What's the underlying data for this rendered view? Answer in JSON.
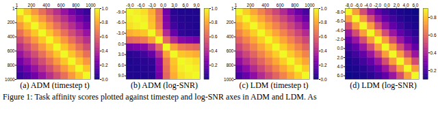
{
  "chart_data": [
    {
      "type": "heatmap",
      "title": "(a) ADM (timestep t)",
      "xlim": [
        1,
        1000
      ],
      "xticks": [
        1,
        200,
        400,
        600,
        800,
        1000
      ],
      "ylim": [
        1000,
        1
      ],
      "yticks": [
        1,
        200,
        400,
        600,
        800,
        1000
      ],
      "cells": [
        [
          1,
          0.88,
          0.76,
          0.64,
          0.52,
          0.42,
          0.32,
          0.22,
          0.14,
          0.08
        ],
        [
          0.88,
          1,
          0.88,
          0.76,
          0.64,
          0.52,
          0.42,
          0.32,
          0.22,
          0.14
        ],
        [
          0.76,
          0.88,
          1,
          0.88,
          0.76,
          0.64,
          0.52,
          0.42,
          0.32,
          0.22
        ],
        [
          0.64,
          0.76,
          0.88,
          1,
          0.88,
          0.76,
          0.64,
          0.52,
          0.42,
          0.32
        ],
        [
          0.52,
          0.64,
          0.76,
          0.88,
          1,
          0.88,
          0.76,
          0.64,
          0.52,
          0.42
        ],
        [
          0.42,
          0.52,
          0.64,
          0.76,
          0.88,
          1,
          0.88,
          0.76,
          0.64,
          0.52
        ],
        [
          0.32,
          0.42,
          0.52,
          0.64,
          0.76,
          0.88,
          1,
          0.88,
          0.76,
          0.64
        ],
        [
          0.22,
          0.32,
          0.42,
          0.52,
          0.64,
          0.76,
          0.88,
          1,
          0.88,
          0.76
        ],
        [
          0.14,
          0.22,
          0.32,
          0.42,
          0.52,
          0.64,
          0.76,
          0.88,
          1,
          0.88
        ],
        [
          0.08,
          0.14,
          0.22,
          0.32,
          0.42,
          0.52,
          0.64,
          0.76,
          0.88,
          1
        ]
      ],
      "colorbar": {
        "lim": [
          0,
          1
        ],
        "ticks": [
          {
            "value": 0,
            "label": "0.0"
          },
          {
            "value": 0.2,
            "label": "0.2"
          },
          {
            "value": 0.4,
            "label": "0.4"
          },
          {
            "value": 0.6,
            "label": "0.6"
          },
          {
            "value": 0.8,
            "label": "0.8"
          },
          {
            "value": 1,
            "label": "1.0"
          }
        ]
      }
    },
    {
      "type": "heatmap",
      "title": "(b) ADM (log-SNR)",
      "xlim": [
        -10,
        10
      ],
      "xticks": [
        {
          "value": -9,
          "label": "-9.0"
        },
        {
          "value": -6,
          "label": "-6.0"
        },
        {
          "value": -3,
          "label": "-3.0"
        },
        {
          "value": 0,
          "label": "0.0"
        },
        {
          "value": 3,
          "label": "3.0"
        },
        {
          "value": 6,
          "label": "6.0"
        },
        {
          "value": 9,
          "label": "9.0"
        }
      ],
      "ylim": [
        10,
        -10
      ],
      "yticks": [
        {
          "value": -9,
          "label": "-9.0"
        },
        {
          "value": -6,
          "label": "-6.0"
        },
        {
          "value": -3,
          "label": "-3.0"
        },
        {
          "value": 0,
          "label": "0.0"
        },
        {
          "value": 3,
          "label": "3.0"
        },
        {
          "value": 6,
          "label": "6.0"
        },
        {
          "value": 9,
          "label": "9.0"
        }
      ],
      "cells": [
        [
          1,
          0.97,
          0.94,
          0.82,
          0.61,
          0.22,
          0.05,
          0.03,
          0.03,
          0.03
        ],
        [
          0.97,
          1,
          0.97,
          0.85,
          0.64,
          0.25,
          0.07,
          0.04,
          0.03,
          0.03
        ],
        [
          0.94,
          0.97,
          1,
          0.88,
          0.67,
          0.28,
          0.1,
          0.05,
          0.04,
          0.03
        ],
        [
          0.82,
          0.85,
          0.88,
          1,
          0.79,
          0.4,
          0.19,
          0.07,
          0.05,
          0.04
        ],
        [
          0.61,
          0.64,
          0.67,
          0.79,
          1,
          0.61,
          0.4,
          0.28,
          0.25,
          0.22
        ],
        [
          0.22,
          0.25,
          0.28,
          0.4,
          0.61,
          1,
          0.79,
          0.67,
          0.64,
          0.61
        ],
        [
          0.05,
          0.07,
          0.1,
          0.19,
          0.4,
          0.79,
          1,
          0.88,
          0.85,
          0.82
        ],
        [
          0.03,
          0.04,
          0.05,
          0.07,
          0.28,
          0.67,
          0.88,
          1,
          0.97,
          0.94
        ],
        [
          0.03,
          0.03,
          0.04,
          0.05,
          0.25,
          0.64,
          0.85,
          0.97,
          1,
          0.97
        ],
        [
          0.03,
          0.03,
          0.03,
          0.04,
          0.22,
          0.61,
          0.82,
          0.94,
          0.97,
          1
        ]
      ],
      "colorbar": {
        "lim": [
          0,
          1
        ],
        "ticks": [
          {
            "value": 0.2,
            "label": "0.2"
          },
          {
            "value": 0.4,
            "label": "0.4"
          },
          {
            "value": 0.6,
            "label": "0.6"
          },
          {
            "value": 0.8,
            "label": "0.8"
          },
          {
            "value": 1,
            "label": "1.0"
          }
        ]
      }
    },
    {
      "type": "heatmap",
      "title": "(c) LDM (timestep t)",
      "xlim": [
        1,
        1000
      ],
      "xticks": [
        1,
        200,
        400,
        600,
        800,
        1000
      ],
      "ylim": [
        1000,
        1
      ],
      "yticks": [
        1,
        200,
        400,
        600,
        800,
        1000
      ],
      "cells": [
        [
          1,
          0.9,
          0.8,
          0.7,
          0.6,
          0.5,
          0.4,
          0.3,
          0.2,
          0.12
        ],
        [
          0.9,
          1,
          0.9,
          0.8,
          0.7,
          0.6,
          0.5,
          0.4,
          0.3,
          0.2
        ],
        [
          0.8,
          0.9,
          1,
          0.9,
          0.8,
          0.7,
          0.6,
          0.5,
          0.4,
          0.3
        ],
        [
          0.7,
          0.8,
          0.9,
          1,
          0.9,
          0.8,
          0.7,
          0.6,
          0.5,
          0.4
        ],
        [
          0.6,
          0.7,
          0.8,
          0.9,
          1,
          0.9,
          0.8,
          0.7,
          0.6,
          0.5
        ],
        [
          0.5,
          0.6,
          0.7,
          0.8,
          0.9,
          1,
          0.9,
          0.8,
          0.7,
          0.6
        ],
        [
          0.4,
          0.5,
          0.6,
          0.7,
          0.8,
          0.9,
          1,
          0.9,
          0.8,
          0.7
        ],
        [
          0.3,
          0.4,
          0.5,
          0.6,
          0.7,
          0.8,
          0.9,
          1,
          0.9,
          0.8
        ],
        [
          0.2,
          0.3,
          0.4,
          0.5,
          0.6,
          0.7,
          0.8,
          0.9,
          1,
          0.9
        ],
        [
          0.12,
          0.2,
          0.3,
          0.4,
          0.5,
          0.6,
          0.7,
          0.8,
          0.9,
          1
        ]
      ],
      "colorbar": {
        "lim": [
          0,
          1
        ],
        "ticks": [
          {
            "value": 0,
            "label": "0.0"
          },
          {
            "value": 0.2,
            "label": "0.2"
          },
          {
            "value": 0.4,
            "label": "0.4"
          },
          {
            "value": 0.6,
            "label": "0.6"
          },
          {
            "value": 0.8,
            "label": "0.8"
          },
          {
            "value": 1,
            "label": "1.0"
          }
        ]
      }
    },
    {
      "type": "heatmap",
      "title": "(d) LDM (log-SNR)",
      "xlim": [
        -8.8,
        6.8
      ],
      "xticks": [
        {
          "value": -8,
          "label": "-8.0"
        },
        {
          "value": -6,
          "label": "-6.0"
        },
        {
          "value": -4,
          "label": "-4.0"
        },
        {
          "value": -2,
          "label": "-2.0"
        },
        {
          "value": 0,
          "label": "0.0"
        },
        {
          "value": 2,
          "label": "2.0"
        },
        {
          "value": 4,
          "label": "4.0"
        },
        {
          "value": 6,
          "label": "6.0"
        }
      ],
      "ylim": [
        6.8,
        -8.8
      ],
      "yticks": [
        {
          "value": -8,
          "label": "-8.0"
        },
        {
          "value": -6,
          "label": "-6.0"
        },
        {
          "value": -4,
          "label": "-4.0"
        },
        {
          "value": -2,
          "label": "-2.0"
        },
        {
          "value": 0,
          "label": "0.0"
        },
        {
          "value": 2,
          "label": "2.0"
        },
        {
          "value": 4,
          "label": "4.0"
        },
        {
          "value": 6,
          "label": "6.0"
        }
      ],
      "cells": [
        [
          0.9,
          0.72,
          0.52,
          0.36,
          0.25,
          0.18,
          0.14,
          0.12,
          0.11,
          0.1
        ],
        [
          0.72,
          0.9,
          0.72,
          0.52,
          0.36,
          0.25,
          0.18,
          0.14,
          0.12,
          0.11
        ],
        [
          0.52,
          0.72,
          0.9,
          0.72,
          0.52,
          0.36,
          0.25,
          0.18,
          0.14,
          0.12
        ],
        [
          0.36,
          0.52,
          0.72,
          0.9,
          0.72,
          0.52,
          0.36,
          0.25,
          0.18,
          0.14
        ],
        [
          0.25,
          0.36,
          0.52,
          0.72,
          0.9,
          0.72,
          0.52,
          0.36,
          0.25,
          0.18
        ],
        [
          0.18,
          0.25,
          0.36,
          0.52,
          0.72,
          0.9,
          0.72,
          0.52,
          0.36,
          0.25
        ],
        [
          0.14,
          0.18,
          0.25,
          0.36,
          0.52,
          0.72,
          0.9,
          0.72,
          0.52,
          0.36
        ],
        [
          0.12,
          0.14,
          0.18,
          0.25,
          0.36,
          0.52,
          0.72,
          0.9,
          0.72,
          0.52
        ],
        [
          0.11,
          0.12,
          0.14,
          0.18,
          0.25,
          0.36,
          0.52,
          0.72,
          0.9,
          0.72
        ],
        [
          0.1,
          0.11,
          0.12,
          0.14,
          0.18,
          0.25,
          0.36,
          0.52,
          0.72,
          0.9
        ]
      ],
      "colorbar": {
        "lim": [
          0.1,
          0.9
        ],
        "ticks": [
          {
            "value": 0.2,
            "label": "0.2"
          },
          {
            "value": 0.4,
            "label": "0.4"
          },
          {
            "value": 0.6,
            "label": "0.6"
          },
          {
            "value": 0.8,
            "label": "0.8"
          }
        ]
      }
    }
  ],
  "caption": "Figure 1: Task affinity scores plotted against timestep and log-SNR axes in ADM and LDM. As"
}
